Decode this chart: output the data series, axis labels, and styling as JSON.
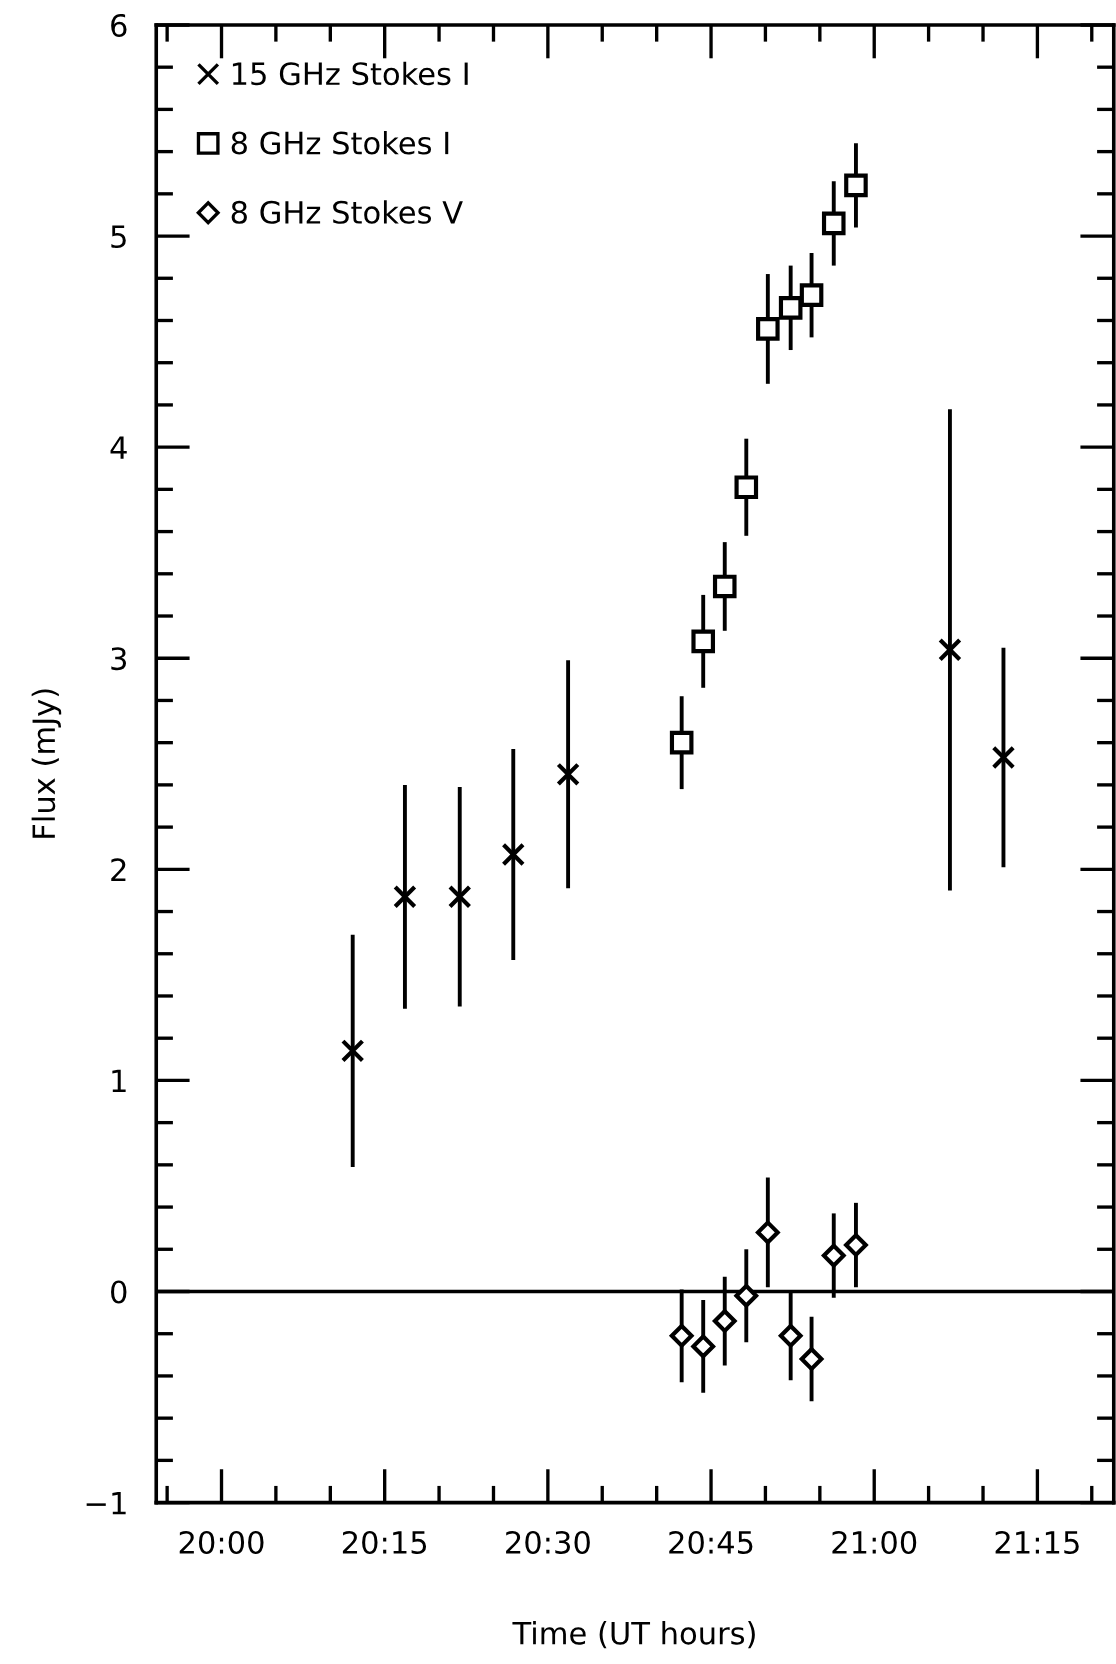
{
  "chart_data": {
    "type": "scatter",
    "xlabel": "Time (UT hours)",
    "ylabel": "Flux (mJy)",
    "xlim": [
      19.9,
      21.367
    ],
    "ylim": [
      -1,
      6
    ],
    "xticks": [
      {
        "value": 19.9167,
        "label": null
      },
      {
        "value": 20.0,
        "label": "20:00"
      },
      {
        "value": 20.0833,
        "label": null
      },
      {
        "value": 20.1667,
        "label": null
      },
      {
        "value": 20.25,
        "label": "20:15"
      },
      {
        "value": 20.3333,
        "label": null
      },
      {
        "value": 20.4167,
        "label": null
      },
      {
        "value": 20.5,
        "label": "20:30"
      },
      {
        "value": 20.5833,
        "label": null
      },
      {
        "value": 20.6667,
        "label": null
      },
      {
        "value": 20.75,
        "label": "20:45"
      },
      {
        "value": 20.8333,
        "label": null
      },
      {
        "value": 20.9167,
        "label": null
      },
      {
        "value": 21.0,
        "label": "21:00"
      },
      {
        "value": 21.0833,
        "label": null
      },
      {
        "value": 21.1667,
        "label": null
      },
      {
        "value": 21.25,
        "label": "21:15"
      },
      {
        "value": 21.3333,
        "label": null
      }
    ],
    "yticks": [
      {
        "value": -1,
        "label": "−1"
      },
      {
        "value": -0.8,
        "label": null
      },
      {
        "value": -0.6,
        "label": null
      },
      {
        "value": -0.4,
        "label": null
      },
      {
        "value": -0.2,
        "label": null
      },
      0,
      {
        "value": 0.2,
        "label": null
      },
      {
        "value": 0.4,
        "label": null
      },
      {
        "value": 0.6,
        "label": null
      },
      {
        "value": 0.8,
        "label": null
      },
      1,
      {
        "value": 1.2,
        "label": null
      },
      {
        "value": 1.4,
        "label": null
      },
      {
        "value": 1.6,
        "label": null
      },
      {
        "value": 1.8,
        "label": null
      },
      2,
      {
        "value": 2.2,
        "label": null
      },
      {
        "value": 2.4,
        "label": null
      },
      {
        "value": 2.6,
        "label": null
      },
      {
        "value": 2.8,
        "label": null
      },
      3,
      {
        "value": 3.2,
        "label": null
      },
      {
        "value": 3.4,
        "label": null
      },
      {
        "value": 3.6,
        "label": null
      },
      {
        "value": 3.8,
        "label": null
      },
      4,
      {
        "value": 4.2,
        "label": null
      },
      {
        "value": 4.4,
        "label": null
      },
      {
        "value": 4.6,
        "label": null
      },
      {
        "value": 4.8,
        "label": null
      },
      5,
      {
        "value": 5.2,
        "label": null
      },
      {
        "value": 5.4,
        "label": null
      },
      {
        "value": 5.6,
        "label": null
      },
      {
        "value": 5.8,
        "label": null
      },
      6
    ],
    "grid": false,
    "legend": "top left",
    "ref_lines": [
      {
        "axis": "y",
        "value": 0,
        "color": "#000000",
        "line_style": "solid"
      }
    ],
    "series": [
      {
        "name": "15 GHz Stokes I",
        "color": "#000000",
        "marker": "cross",
        "x": [
          20.201,
          20.281,
          20.365,
          20.447,
          20.531,
          21.116,
          21.198
        ],
        "values": [
          1.14,
          1.87,
          1.87,
          2.07,
          2.45,
          3.04,
          2.53
        ],
        "errors": [
          0.55,
          0.53,
          0.52,
          0.5,
          0.54,
          1.14,
          0.52
        ]
      },
      {
        "name": "8 GHz Stokes I",
        "color": "#000000",
        "marker": "square",
        "x": [
          20.705,
          20.738,
          20.771,
          20.804,
          20.837,
          20.872,
          20.904,
          20.938,
          20.972
        ],
        "values": [
          2.6,
          3.08,
          3.34,
          3.81,
          4.56,
          4.66,
          4.72,
          5.06,
          5.24
        ],
        "errors": [
          0.22,
          0.22,
          0.21,
          0.23,
          0.26,
          0.2,
          0.2,
          0.2,
          0.2
        ]
      },
      {
        "name": "8 GHz Stokes V",
        "color": "#000000",
        "marker": "diamond",
        "x": [
          20.705,
          20.738,
          20.771,
          20.804,
          20.837,
          20.872,
          20.904,
          20.938,
          20.972
        ],
        "values": [
          -0.21,
          -0.26,
          -0.14,
          -0.02,
          0.28,
          -0.21,
          -0.32,
          0.17,
          0.22
        ],
        "errors": [
          0.22,
          0.22,
          0.21,
          0.22,
          0.26,
          0.21,
          0.2,
          0.2,
          0.2
        ]
      }
    ]
  }
}
